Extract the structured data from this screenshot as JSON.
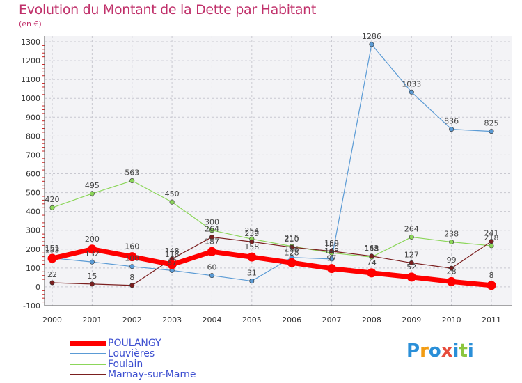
{
  "chart_data": {
    "type": "line",
    "title": "Evolution du Montant de la Dette par Habitant",
    "unit": "(en €)",
    "x": [
      "2000",
      "2001",
      "2002",
      "2003",
      "2004",
      "2005",
      "2006",
      "2007",
      "2008",
      "2009",
      "2010",
      "2011"
    ],
    "ylim": [
      -100,
      1300
    ],
    "yticks": [
      "-100",
      "0",
      "100",
      "200",
      "300",
      "400",
      "500",
      "600",
      "700",
      "800",
      "900",
      "1000",
      "1100",
      "1200",
      "1300"
    ],
    "grid": true,
    "legend_position": "bottom-left",
    "series": [
      {
        "name": "POULANGY",
        "color": "#ff0000",
        "values": [
          151,
          200,
          160,
          118,
          187,
          158,
          128,
          97,
          74,
          52,
          28,
          8
        ]
      },
      {
        "name": "Louvières",
        "color": "#5b9bd5",
        "values": [
          153,
          132,
          108,
          87,
          60,
          31,
          156,
          148,
          1286,
          1033,
          836,
          825
        ]
      },
      {
        "name": "Foulain",
        "color": "#8cd65a",
        "values": [
          420,
          495,
          563,
          450,
          300,
          254,
          215,
          180,
          158,
          264,
          238,
          218
        ]
      },
      {
        "name": "Marnay-sur-Marne",
        "color": "#7b1f1f",
        "values": [
          22,
          15,
          8,
          148,
          264,
          239,
          210,
          189,
          163,
          127,
          99,
          241
        ]
      }
    ]
  },
  "brand": {
    "letters": [
      "P",
      "r",
      "o",
      "x",
      "i",
      "t",
      "i"
    ],
    "colors": [
      "#2a8fd8",
      "#f39c12",
      "#2a8fd8",
      "#e74c3c",
      "#2a8fd8",
      "#8cc63f",
      "#2a8fd8"
    ]
  }
}
